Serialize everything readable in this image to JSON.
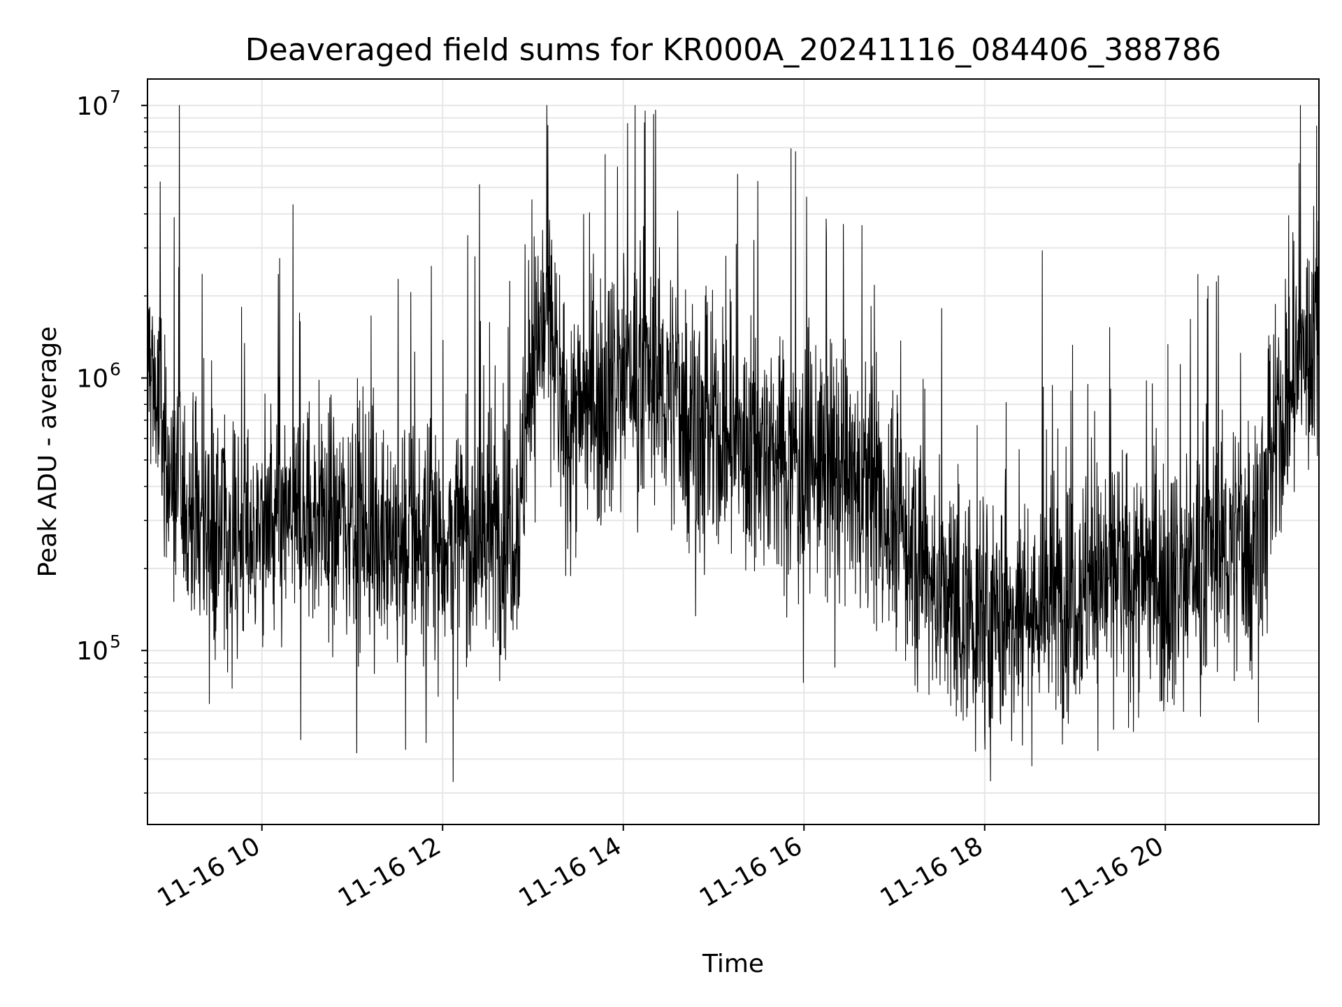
{
  "chart_data": {
    "type": "line",
    "title": "Deaveraged field sums for KR000A_20241116_084406_388786",
    "xlabel": "Time",
    "ylabel": "Peak ADU - average",
    "yscale": "log",
    "ylim": [
      23000,
      12500000
    ],
    "xlim": [
      "2024-11-16 08:44",
      "2024-11-16 21:42"
    ],
    "grid": true,
    "line_color": "#000000",
    "x_ticks": [
      {
        "value": "2024-11-16 10:00",
        "label": "11-16 10"
      },
      {
        "value": "2024-11-16 12:00",
        "label": "11-16 12"
      },
      {
        "value": "2024-11-16 14:00",
        "label": "11-16 14"
      },
      {
        "value": "2024-11-16 16:00",
        "label": "11-16 16"
      },
      {
        "value": "2024-11-16 18:00",
        "label": "11-16 18"
      },
      {
        "value": "2024-11-16 20:00",
        "label": "11-16 20"
      }
    ],
    "y_ticks": [
      {
        "value": 100000,
        "base": "10",
        "exp": "5"
      },
      {
        "value": 1000000,
        "base": "10",
        "exp": "6"
      },
      {
        "value": 10000000,
        "base": "10",
        "exp": "7"
      }
    ],
    "series": [
      {
        "values": [
          [
            "2024-11-16 08:44",
            1300000
          ],
          [
            "2024-11-16 09:00",
            400000
          ],
          [
            "2024-11-16 09:15",
            300000
          ],
          [
            "2024-11-16 09:30",
            280000
          ],
          [
            "2024-11-16 09:45",
            260000
          ],
          [
            "2024-11-16 10:00",
            280000
          ],
          [
            "2024-11-16 10:30",
            300000
          ],
          [
            "2024-11-16 11:00",
            320000
          ],
          [
            "2024-11-16 11:30",
            260000
          ],
          [
            "2024-11-16 12:00",
            250000
          ],
          [
            "2024-11-16 12:30",
            260000
          ],
          [
            "2024-11-16 12:50",
            300000
          ],
          [
            "2024-11-16 13:00",
            1200000
          ],
          [
            "2024-11-16 13:10",
            1800000
          ],
          [
            "2024-11-16 13:20",
            700000
          ],
          [
            "2024-11-16 13:40",
            800000
          ],
          [
            "2024-11-16 14:00",
            1100000
          ],
          [
            "2024-11-16 14:30",
            900000
          ],
          [
            "2024-11-16 15:00",
            600000
          ],
          [
            "2024-11-16 15:30",
            550000
          ],
          [
            "2024-11-16 16:00",
            500000
          ],
          [
            "2024-11-16 16:30",
            420000
          ],
          [
            "2024-11-16 17:00",
            300000
          ],
          [
            "2024-11-16 17:30",
            160000
          ],
          [
            "2024-11-16 18:00",
            120000
          ],
          [
            "2024-11-16 18:30",
            140000
          ],
          [
            "2024-11-16 19:00",
            170000
          ],
          [
            "2024-11-16 19:30",
            200000
          ],
          [
            "2024-11-16 20:00",
            180000
          ],
          [
            "2024-11-16 20:30",
            230000
          ],
          [
            "2024-11-16 21:00",
            260000
          ],
          [
            "2024-11-16 21:15",
            600000
          ],
          [
            "2024-11-16 21:30",
            1200000
          ],
          [
            "2024-11-16 21:42",
            1500000
          ]
        ]
      }
    ]
  }
}
